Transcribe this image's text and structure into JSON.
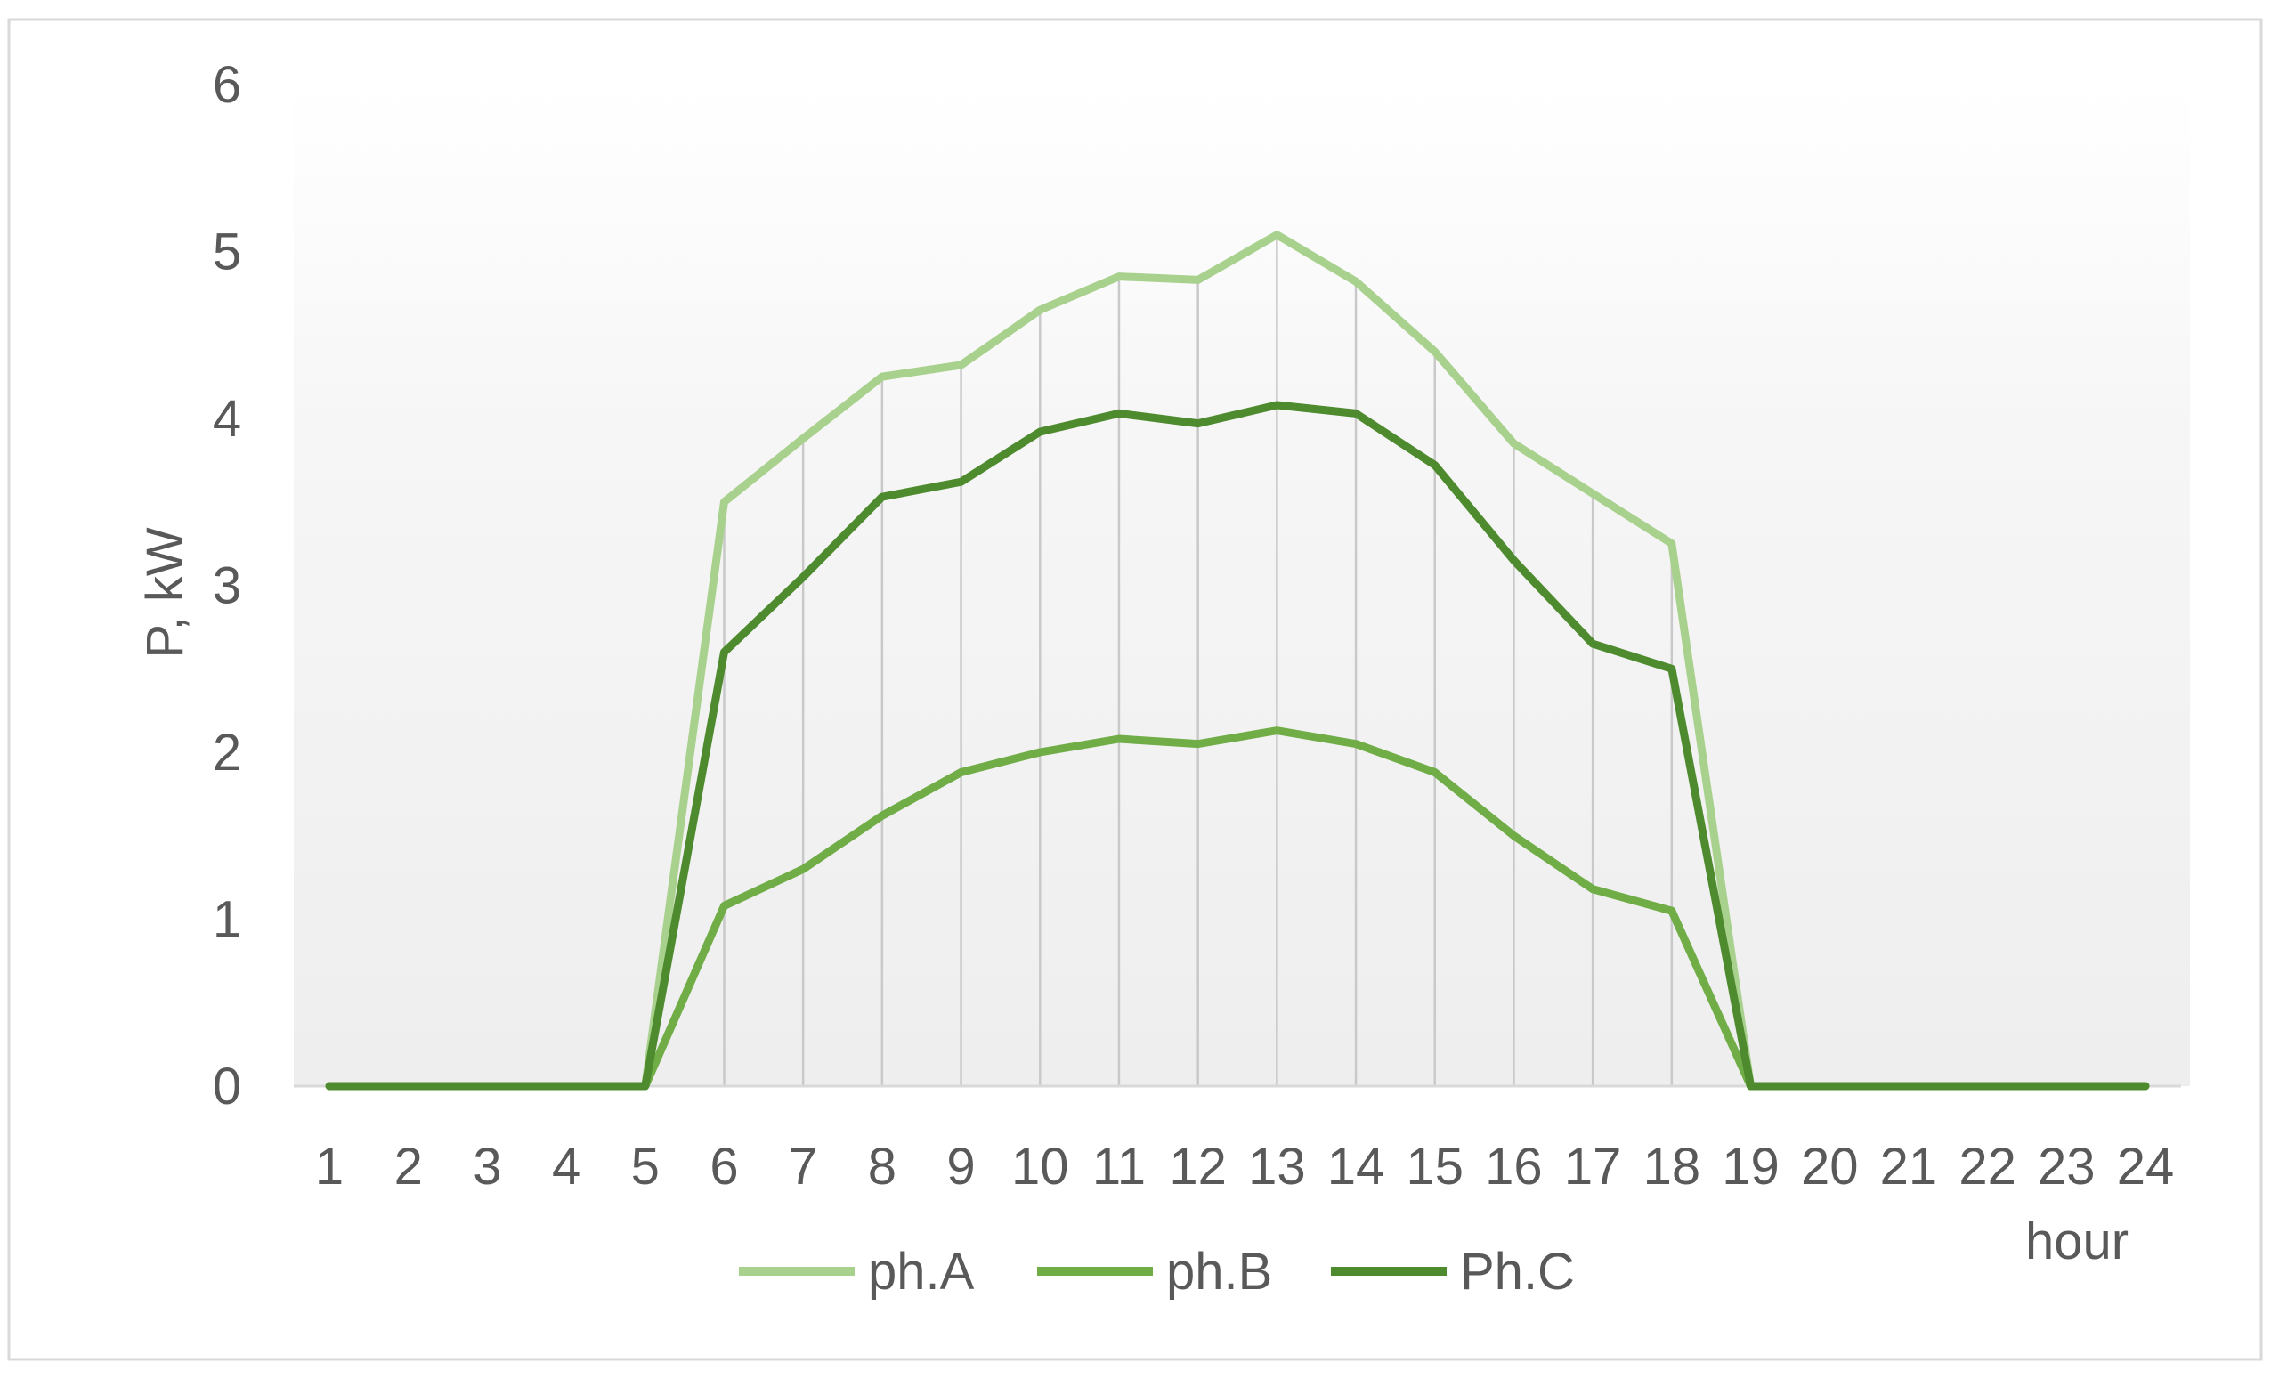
{
  "chart_data": {
    "type": "line",
    "xlabel": "hour",
    "ylabel": "P, kW",
    "ylim": [
      0,
      6
    ],
    "yticks": [
      "0",
      "1",
      "2",
      "3",
      "4",
      "5",
      "6"
    ],
    "categories": [
      "1",
      "2",
      "3",
      "4",
      "5",
      "6",
      "7",
      "8",
      "9",
      "10",
      "11",
      "12",
      "13",
      "14",
      "15",
      "16",
      "17",
      "18",
      "19",
      "20",
      "21",
      "22",
      "23",
      "24"
    ],
    "grid": "vertical drop lines at each hour, no horizontal gridlines",
    "background": "light gray gradient fading to white at top",
    "legend_position": "bottom",
    "series": [
      {
        "name": "ph.A",
        "color": "#a9d18e",
        "values": [
          0,
          0,
          0,
          0,
          0,
          3.5,
          3.88,
          4.25,
          4.32,
          4.65,
          4.85,
          4.83,
          5.1,
          4.82,
          4.4,
          3.85,
          3.55,
          3.25,
          0,
          0,
          0,
          0,
          0,
          0
        ]
      },
      {
        "name": "ph.B",
        "color": "#70ad47",
        "values": [
          0,
          0,
          0,
          0,
          0,
          1.08,
          1.3,
          1.62,
          1.88,
          2.0,
          2.08,
          2.05,
          2.13,
          2.05,
          1.88,
          1.5,
          1.18,
          1.05,
          0,
          0,
          0,
          0,
          0,
          0
        ]
      },
      {
        "name": "Ph.C",
        "color": "#4e8a2e",
        "values": [
          0,
          0,
          0,
          0,
          0,
          2.6,
          3.05,
          3.53,
          3.62,
          3.92,
          4.03,
          3.97,
          4.08,
          4.03,
          3.72,
          3.15,
          2.65,
          2.5,
          0,
          0,
          0,
          0,
          0,
          0
        ]
      }
    ]
  }
}
